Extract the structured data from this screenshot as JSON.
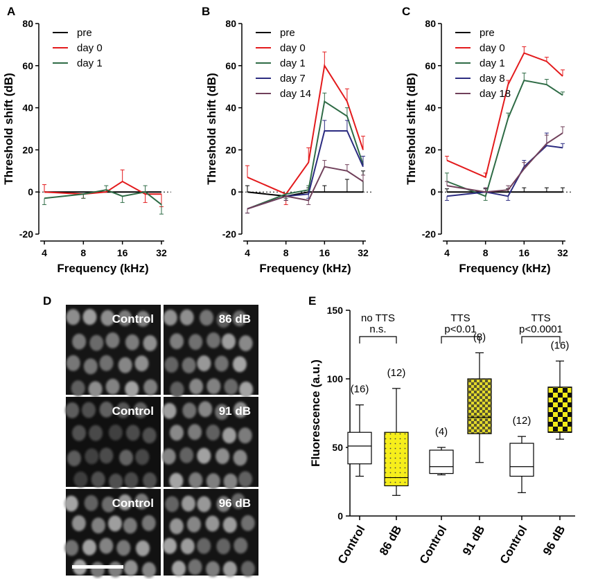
{
  "figure": {
    "panel_letters": [
      "A",
      "B",
      "C",
      "D",
      "E"
    ]
  },
  "chart_data": [
    {
      "panel": "A",
      "type": "line",
      "xlabel": "Frequency (kHz)",
      "ylabel": "Threshold shift (dB)",
      "x": [
        4,
        8,
        12,
        16,
        24,
        32
      ],
      "xticks": [
        4,
        8,
        16,
        32
      ],
      "xtick_labels": [
        "4",
        "8",
        "16",
        "32"
      ],
      "ylim": [
        -20,
        80
      ],
      "yticks": [
        -20,
        0,
        20,
        40,
        60,
        80
      ],
      "zero_line": true,
      "series": [
        {
          "name": "pre",
          "color": "#000000",
          "values": [
            0,
            0,
            0,
            0,
            0,
            0
          ],
          "errors": [
            0,
            0,
            0,
            0,
            0,
            0
          ]
        },
        {
          "name": "day 0",
          "color": "#e31a1c",
          "values": [
            0,
            -1,
            0,
            5,
            -1,
            -1
          ],
          "errors": [
            3.5,
            2,
            1,
            5.5,
            4,
            6
          ]
        },
        {
          "name": "day 1",
          "color": "#2e6b45",
          "values": [
            -3,
            -1,
            1,
            -2,
            0,
            -6
          ],
          "errors": [
            3,
            2,
            2,
            3,
            3,
            4.5
          ]
        }
      ]
    },
    {
      "panel": "B",
      "type": "line",
      "xlabel": "Frequency (kHz)",
      "ylabel": "Threshold shift (dB)",
      "x": [
        4,
        8,
        12,
        16,
        24,
        32
      ],
      "xticks": [
        4,
        8,
        16,
        32
      ],
      "xtick_labels": [
        "4",
        "8",
        "16",
        "32"
      ],
      "ylim": [
        -20,
        80
      ],
      "yticks": [
        -20,
        0,
        20,
        40,
        60,
        80
      ],
      "zero_line": true,
      "series": [
        {
          "name": "pre",
          "color": "#000000",
          "values": [
            0,
            -2,
            0,
            0,
            0,
            0
          ],
          "errors": [
            3,
            2,
            2,
            3,
            6,
            10
          ]
        },
        {
          "name": "day 0",
          "color": "#e31a1c",
          "values": [
            7,
            -1,
            14,
            60,
            43,
            20
          ],
          "errors": [
            5.5,
            5,
            7,
            6.5,
            6,
            6.5
          ]
        },
        {
          "name": "day 1",
          "color": "#2e6b45",
          "values": [
            -8,
            -1,
            1,
            43,
            36,
            13
          ],
          "errors": [
            2,
            2,
            2,
            4,
            4,
            4
          ]
        },
        {
          "name": "day 7",
          "color": "#2b2b80",
          "values": [
            -8,
            -2,
            -1,
            29,
            29,
            12
          ],
          "errors": [
            2,
            2,
            2,
            5,
            5,
            5
          ]
        },
        {
          "name": "day 14",
          "color": "#70405a",
          "values": [
            -8,
            -2,
            -4,
            12,
            10,
            5
          ],
          "errors": [
            2,
            2,
            2,
            3,
            3,
            3
          ]
        }
      ]
    },
    {
      "panel": "C",
      "type": "line",
      "xlabel": "Frequency (kHz)",
      "ylabel": "Threshold shift (dB)",
      "x": [
        4,
        8,
        12,
        16,
        24,
        32
      ],
      "xticks": [
        4,
        8,
        16,
        32
      ],
      "xtick_labels": [
        "4",
        "8",
        "16",
        "32"
      ],
      "ylim": [
        -20,
        80
      ],
      "yticks": [
        -20,
        0,
        20,
        40,
        60,
        80
      ],
      "zero_line": true,
      "series": [
        {
          "name": "pre",
          "color": "#000000",
          "values": [
            0,
            0,
            0,
            0,
            0,
            0
          ],
          "errors": [
            1.5,
            1.5,
            1.5,
            2,
            2,
            2
          ]
        },
        {
          "name": "day 0",
          "color": "#e31a1c",
          "values": [
            15,
            7,
            51,
            66,
            62,
            55
          ],
          "errors": [
            2,
            2,
            2,
            3,
            2,
            3
          ]
        },
        {
          "name": "day 1",
          "color": "#2e6b45",
          "values": [
            5,
            -2,
            35,
            53,
            51,
            46
          ],
          "errors": [
            4,
            2,
            2.5,
            3.5,
            2.5,
            1.5
          ]
        },
        {
          "name": "day 8",
          "color": "#2b2b80",
          "values": [
            -2,
            0,
            -2,
            12,
            22,
            21
          ],
          "errors": [
            2,
            2,
            2,
            3,
            6,
            2
          ]
        },
        {
          "name": "day 18",
          "color": "#70405a",
          "values": [
            3,
            0,
            1,
            11,
            23,
            28
          ],
          "errors": [
            2,
            2,
            2,
            3,
            4,
            3
          ]
        }
      ]
    },
    {
      "panel": "E",
      "type": "box",
      "ylabel": "Fluorescence (a.u.)",
      "ylim": [
        0,
        150
      ],
      "yticks": [
        0,
        50,
        100,
        150
      ],
      "categories": [
        "Control",
        "86 dB",
        "Control",
        "91 dB",
        "Control",
        "96 dB"
      ],
      "boxes": [
        {
          "label": "Control",
          "min": 29,
          "q1": 38,
          "median": 51,
          "q3": 61,
          "max": 81,
          "n": "(16)",
          "fill": "white"
        },
        {
          "label": "86 dB",
          "min": 15,
          "q1": 22,
          "median": 28,
          "q3": 61,
          "max": 93,
          "n": "(12)",
          "fill": "yellow-dots"
        },
        {
          "label": "Control",
          "min": 30,
          "q1": 31,
          "median": 36,
          "q3": 48,
          "max": 50,
          "n": "(4)",
          "fill": "white"
        },
        {
          "label": "91 dB",
          "min": 39,
          "q1": 60,
          "median": 72,
          "q3": 100,
          "max": 119,
          "n": "(8)",
          "fill": "yellow-check-small"
        },
        {
          "label": "Control",
          "min": 17,
          "q1": 29,
          "median": 36,
          "q3": 53,
          "max": 58,
          "n": "(12)",
          "fill": "white"
        },
        {
          "label": "96 dB",
          "min": 56,
          "q1": 61,
          "median": 61,
          "q3": 94,
          "max": 113,
          "n": "(16)",
          "fill": "yellow-check-large"
        }
      ],
      "comparisons": [
        {
          "line1": "no TTS",
          "line2": "n.s."
        },
        {
          "line1": "TTS",
          "line2": "p<0.01"
        },
        {
          "line1": "TTS",
          "line2": "p<0.0001"
        }
      ]
    }
  ],
  "micrographs": {
    "panel": "D",
    "labels": [
      [
        "Control",
        "86 dB"
      ],
      [
        "Control",
        "91 dB"
      ],
      [
        "Control",
        "96 dB"
      ]
    ],
    "scale_bar": true
  }
}
